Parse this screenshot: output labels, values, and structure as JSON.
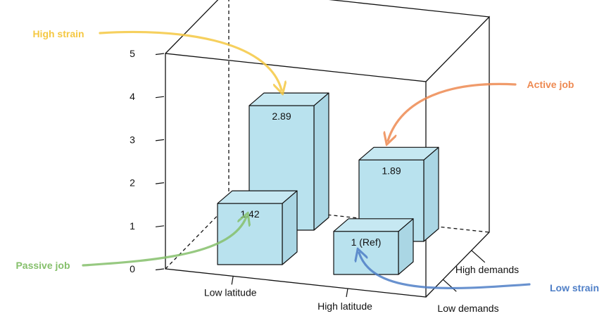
{
  "chart_data": {
    "type": "bar",
    "y_ticks": [
      "0",
      "1",
      "2",
      "3",
      "4",
      "5"
    ],
    "ylim": [
      0,
      5
    ],
    "x_categories": [
      "Low latitude",
      "High latitude"
    ],
    "depth_categories": [
      "Low demands",
      "High demands"
    ],
    "bars": [
      {
        "x": "Low latitude",
        "depth": "High demands",
        "value": 2.89,
        "label": "2.89",
        "callout": "High strain"
      },
      {
        "x": "High latitude",
        "depth": "High demands",
        "value": 1.89,
        "label": "1.89",
        "callout": "Active job"
      },
      {
        "x": "Low latitude",
        "depth": "Low demands",
        "value": 1.42,
        "label": "1.42",
        "callout": "Passive job"
      },
      {
        "x": "High latitude",
        "depth": "Low demands",
        "value": 1,
        "label": "1 (Ref)",
        "callout": "Low strain"
      }
    ],
    "bar_color": "#b9e2ee",
    "callout_colors": {
      "High strain": "#f5c843",
      "Active job": "#ee8a52",
      "Passive job": "#86c06c",
      "Low strain": "#4f7fc7"
    }
  }
}
